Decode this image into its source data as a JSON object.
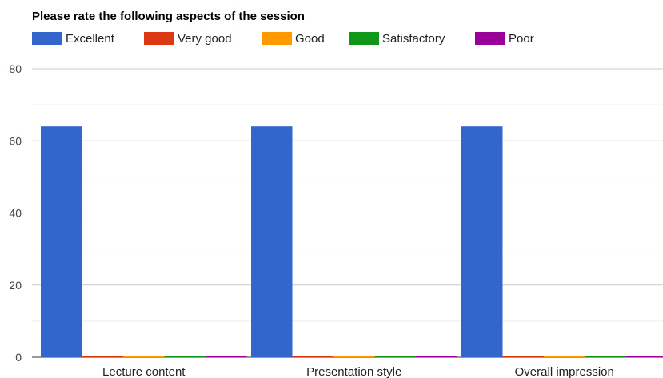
{
  "chart_data": {
    "type": "bar",
    "title": "Please rate the following aspects of the session",
    "xlabel": "",
    "ylabel": "",
    "ylim": [
      0,
      80
    ],
    "yticks": [
      0,
      20,
      40,
      60,
      80
    ],
    "minor_gridlines": [
      10,
      30,
      50,
      70
    ],
    "grid": true,
    "legend_position": "top-left",
    "categories": [
      "Lecture content",
      "Presentation style",
      "Overall impression"
    ],
    "series": [
      {
        "name": "Excellent",
        "color": "#3366cc",
        "values": [
          64,
          64,
          64
        ]
      },
      {
        "name": "Very good",
        "color": "#dc3912",
        "values": [
          0,
          0,
          0
        ]
      },
      {
        "name": "Good",
        "color": "#ff9900",
        "values": [
          0,
          0,
          0
        ]
      },
      {
        "name": "Satisfactory",
        "color": "#109618",
        "values": [
          0,
          0,
          0
        ]
      },
      {
        "name": "Poor",
        "color": "#990099",
        "values": [
          0,
          0,
          0
        ]
      }
    ]
  }
}
